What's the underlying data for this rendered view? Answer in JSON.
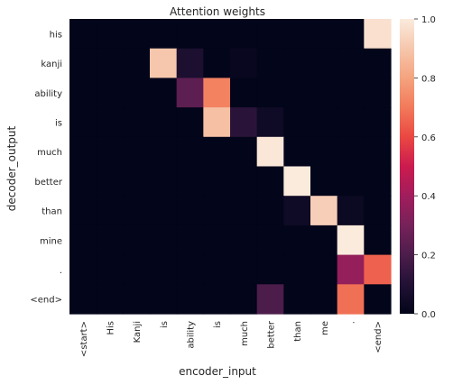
{
  "chart_data": {
    "type": "heatmap",
    "title": "Attention weights",
    "xlabel": "encoder_input",
    "ylabel": "decoder_output",
    "x_labels": [
      "<start>",
      "His",
      "Kanji",
      "is",
      "ability",
      "is",
      "much",
      "better",
      "than",
      "me",
      ".",
      "<end>"
    ],
    "y_labels": [
      "his",
      "kanji",
      "ability",
      "is",
      "much",
      "better",
      "than",
      "mine",
      ".",
      "<end>"
    ],
    "values": [
      [
        0,
        0,
        0,
        0,
        0,
        0,
        0,
        0,
        0,
        0,
        0,
        0.97
      ],
      [
        0,
        0,
        0,
        0.9,
        0.08,
        0,
        0.02,
        0,
        0,
        0,
        0,
        0
      ],
      [
        0,
        0,
        0,
        0,
        0.24,
        0.72,
        0,
        0,
        0,
        0,
        0,
        0
      ],
      [
        0,
        0,
        0,
        0,
        0,
        0.88,
        0.12,
        0.04,
        0,
        0,
        0,
        0
      ],
      [
        0,
        0,
        0,
        0,
        0,
        0,
        0,
        0.99,
        0,
        0,
        0,
        0
      ],
      [
        0,
        0,
        0,
        0,
        0,
        0,
        0,
        0,
        1.0,
        0,
        0,
        0
      ],
      [
        0,
        0,
        0,
        0,
        0,
        0,
        0,
        0,
        0.04,
        0.92,
        0.03,
        0
      ],
      [
        0,
        0,
        0,
        0,
        0,
        0,
        0,
        0,
        0,
        0,
        1.0,
        0
      ],
      [
        0,
        0,
        0,
        0,
        0,
        0,
        0,
        0,
        0,
        0,
        0.37,
        0.65
      ],
      [
        0,
        0,
        0,
        0,
        0,
        0,
        0,
        0.2,
        0,
        0,
        0.68,
        0
      ]
    ],
    "colorbar": {
      "min": 0.0,
      "max": 1.0,
      "ticks": [
        "0.0",
        "0.2",
        "0.4",
        "0.6",
        "0.8",
        "1.0"
      ]
    },
    "colormap": "rocket",
    "grid": false
  }
}
